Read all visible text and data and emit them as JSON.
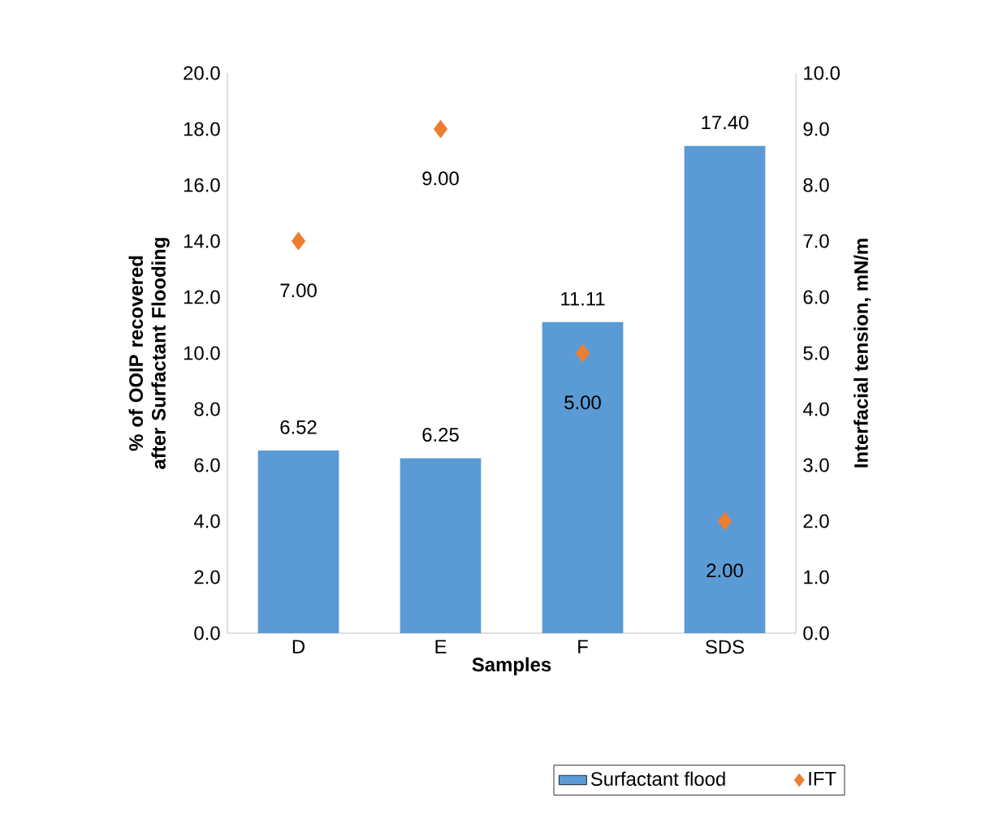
{
  "chart_data": {
    "type": "bar",
    "xlabel": "Samples",
    "ylabel": "% of OOIP recovered after Surfactant Flooding",
    "y2label": "Interfacial tension, mN/m",
    "categories": [
      "D",
      "E",
      "F",
      "SDS"
    ],
    "series": [
      {
        "name": "Surfactant flood",
        "color": "#5b9bd5",
        "values": [
          6.52,
          6.25,
          11.11,
          17.4
        ],
        "value_labels": [
          "6.52",
          "6.25",
          "11.11",
          "17.40"
        ]
      },
      {
        "name": "IFT",
        "type": "scatter",
        "axis": "y2",
        "color": "#ed7d31",
        "values": [
          7,
          9,
          5,
          2
        ],
        "value_labels": [
          "7.00",
          "9.00",
          "5.00",
          "2.00"
        ]
      }
    ],
    "ylim": [
      0,
      20
    ],
    "yticks": [
      {
        "value": 0,
        "label": "0.0"
      },
      {
        "value": 2,
        "label": "2.0"
      },
      {
        "value": 4,
        "label": "4.0"
      },
      {
        "value": 6,
        "label": "6.0"
      },
      {
        "value": 8,
        "label": "8.0"
      },
      {
        "value": 10,
        "label": "10.0"
      },
      {
        "value": 12,
        "label": "12.0"
      },
      {
        "value": 14,
        "label": "14.0"
      },
      {
        "value": 16,
        "label": "16.0"
      },
      {
        "value": 18,
        "label": "18.0"
      },
      {
        "value": 20,
        "label": "20.0"
      }
    ],
    "y2lim": [
      0,
      10
    ],
    "y2ticks": [
      {
        "value": 0,
        "label": "0.0"
      },
      {
        "value": 1,
        "label": "1.0"
      },
      {
        "value": 2,
        "label": "2.0"
      },
      {
        "value": 3,
        "label": "3.0"
      },
      {
        "value": 4,
        "label": "4.0"
      },
      {
        "value": 5,
        "label": "5.0"
      },
      {
        "value": 6,
        "label": "6.0"
      },
      {
        "value": 7,
        "label": "7.0"
      },
      {
        "value": 8,
        "label": "8.0"
      },
      {
        "value": 9,
        "label": "9.0"
      },
      {
        "value": 10,
        "label": "10.0"
      }
    ],
    "marker": "diamond",
    "legend": "bottom right",
    "grid": false
  }
}
